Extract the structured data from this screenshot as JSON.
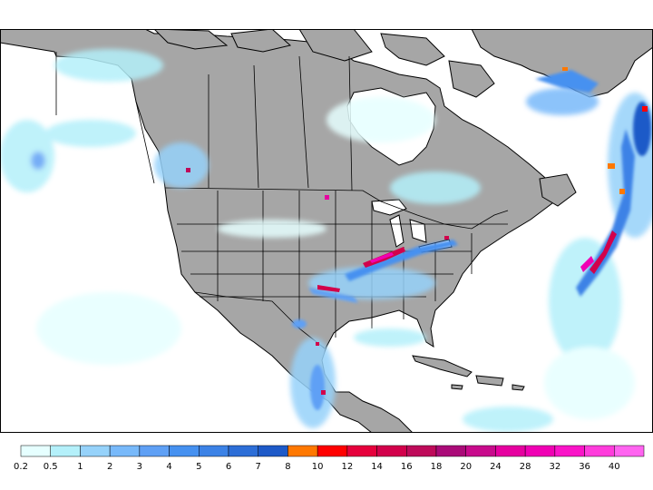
{
  "map": {
    "colors": {
      "ocean": "#ffffff",
      "land": "#a6a6a6",
      "outline": "#000000"
    }
  },
  "colorbar": {
    "bins": [
      {
        "color": "#e6ffff"
      },
      {
        "color": "#b4f0fa"
      },
      {
        "color": "#96d2fa"
      },
      {
        "color": "#78b9fa"
      },
      {
        "color": "#5fa0f5"
      },
      {
        "color": "#4691f0"
      },
      {
        "color": "#3c82e6"
      },
      {
        "color": "#2d6ed7"
      },
      {
        "color": "#1e5ac8"
      },
      {
        "color": "#ff7800"
      },
      {
        "color": "#ff0000"
      },
      {
        "color": "#e6003c"
      },
      {
        "color": "#d2004b"
      },
      {
        "color": "#be0a5a"
      },
      {
        "color": "#aa0a78"
      },
      {
        "color": "#c80a8c"
      },
      {
        "color": "#e600a0"
      },
      {
        "color": "#f000b4"
      },
      {
        "color": "#fa14c8"
      },
      {
        "color": "#ff3cdc"
      },
      {
        "color": "#ff64f0"
      }
    ],
    "labels": [
      "0.2",
      "0.5",
      "1",
      "2",
      "3",
      "4",
      "5",
      "6",
      "7",
      "8",
      "10",
      "12",
      "14",
      "16",
      "18",
      "20",
      "24",
      "28",
      "32",
      "36",
      "40"
    ]
  }
}
